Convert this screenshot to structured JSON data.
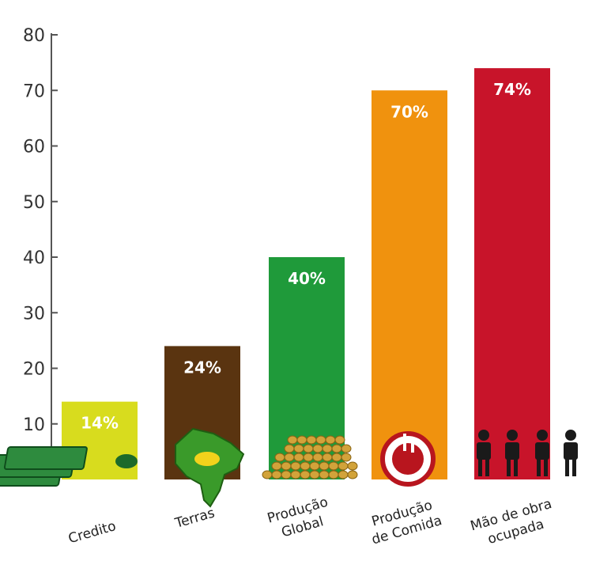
{
  "chart_data": {
    "type": "bar",
    "categories": [
      "Credito",
      "Terras",
      "Produção Global",
      "Produção de Comida",
      "Mão de obra ocupada"
    ],
    "category_lines": [
      [
        "Credito"
      ],
      [
        "Terras"
      ],
      [
        "Produção",
        "Global"
      ],
      [
        "Produção",
        "de Comida"
      ],
      [
        "Mão de obra",
        "ocupada"
      ]
    ],
    "values": [
      14,
      24,
      40,
      70,
      74
    ],
    "data_labels": [
      "14%",
      "24%",
      "40%",
      "70%",
      "74%"
    ],
    "colors": [
      "#d8dc1e",
      "#5a3410",
      "#1f9a3a",
      "#f0920e",
      "#c8142a"
    ],
    "yticks": [
      0,
      10,
      20,
      30,
      40,
      50,
      60,
      70,
      80
    ],
    "ylim": [
      0,
      80
    ],
    "grid": false,
    "icons": [
      "money-icon",
      "brazil-map-icon",
      "grain-pile-icon",
      "plate-cutlery-icon",
      "workers-icon"
    ]
  }
}
